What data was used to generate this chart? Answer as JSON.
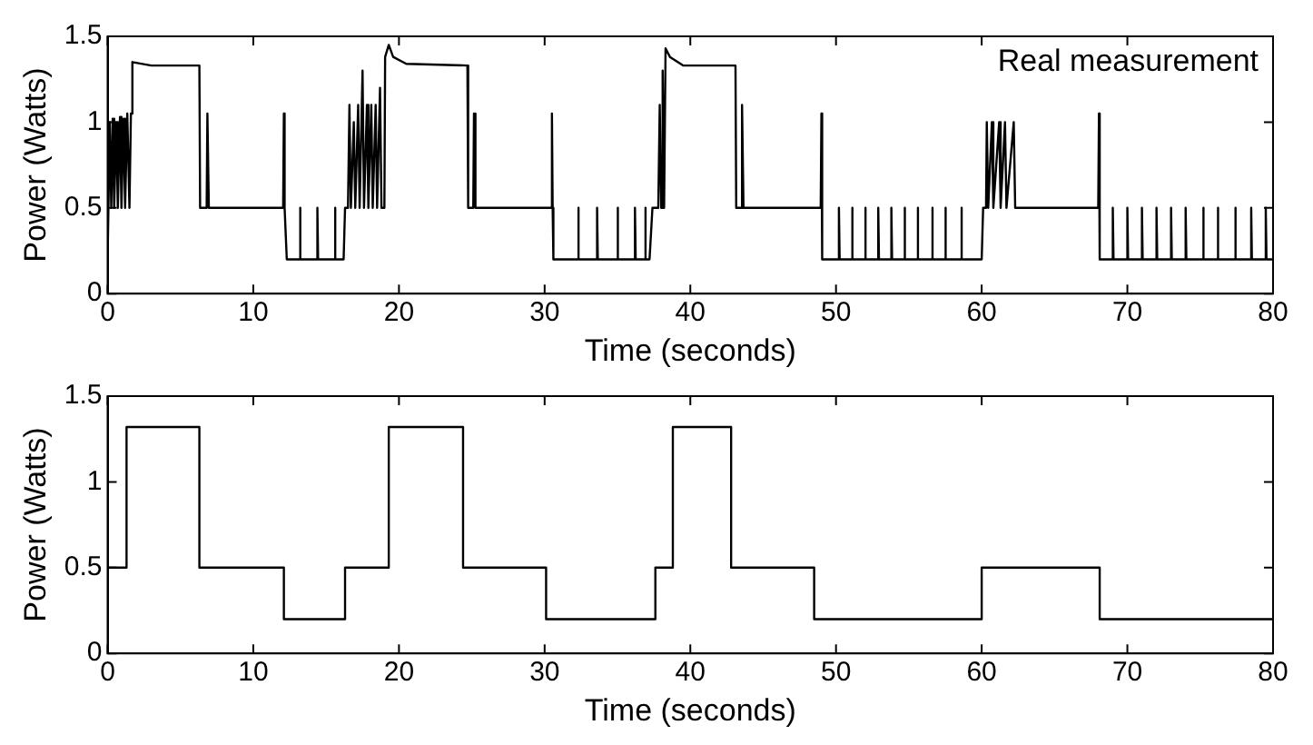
{
  "chart_data": [
    {
      "type": "line",
      "xlabel": "Time (seconds)",
      "ylabel": "Power (Watts)",
      "xlim": [
        0,
        80
      ],
      "ylim": [
        0,
        1.5
      ],
      "xticks": [
        0,
        10,
        20,
        30,
        40,
        50,
        60,
        70,
        80
      ],
      "yticks": [
        0,
        0.5,
        1,
        1.5
      ],
      "line_style": "solid",
      "marker": "none",
      "series": [
        {
          "name": "Real measurement",
          "color": "#000000",
          "x": [
            0,
            0.15,
            0.25,
            0.35,
            0.45,
            0.6,
            0.7,
            0.85,
            0.95,
            1.1,
            1.2,
            1.35,
            1.5,
            1.6,
            1.7,
            3,
            6.3,
            6.35,
            6.8,
            6.85,
            6.95,
            12.05,
            12.1,
            12.15,
            12.3,
            13.2,
            13.2,
            13.25,
            14.4,
            14.4,
            14.45,
            15.6,
            15.6,
            15.65,
            16.2,
            16.3,
            16.5,
            16.6,
            16.7,
            16.9,
            17,
            17.2,
            17.3,
            17.5,
            17.6,
            17.8,
            17.9,
            18.1,
            18.2,
            18.4,
            18.5,
            18.7,
            18.8,
            19,
            19.05,
            19.3,
            19.6,
            20.5,
            24.7,
            24.75,
            25.1,
            25.15,
            25.25,
            30.45,
            30.5,
            30.55,
            30.6,
            32.3,
            32.3,
            32.35,
            33.6,
            33.6,
            33.65,
            35,
            35,
            35.05,
            36.2,
            36.2,
            36.25,
            36.9,
            36.9,
            36.95,
            37.2,
            37.4,
            37.8,
            37.9,
            38,
            38.1,
            38.2,
            38.3,
            38.6,
            39.5,
            43.1,
            43.15,
            43.5,
            43.55,
            43.65,
            48.95,
            49,
            49.05,
            50.2,
            50.2,
            50.25,
            51.1,
            51.1,
            51.15,
            52,
            52,
            52.05,
            52.9,
            52.9,
            52.95,
            53.8,
            53.8,
            53.85,
            54.7,
            54.7,
            54.75,
            55.6,
            55.6,
            55.65,
            56.6,
            56.6,
            56.65,
            57.5,
            57.5,
            57.55,
            58.6,
            58.6,
            58.65,
            60,
            60.1,
            60.3,
            60.35,
            60.45,
            60.7,
            60.8,
            61.2,
            61.3,
            61.6,
            61.7,
            62.2,
            62.3,
            68,
            68.05,
            68.1,
            69,
            69,
            69.05,
            70,
            70,
            70.05,
            71,
            71,
            71.05,
            72,
            72,
            72.05,
            73,
            73,
            73.05,
            74,
            74,
            74.05,
            75.2,
            75.2,
            75.25,
            76.2,
            76.2,
            76.25,
            77.4,
            77.4,
            77.45,
            78.5,
            78.5,
            78.55,
            79.5,
            79.5,
            79.55,
            80
          ],
          "values": [
            0.2,
            1.0,
            0.5,
            1.02,
            0.5,
            1.0,
            0.5,
            1.03,
            0.5,
            1.02,
            0.5,
            1.05,
            0.5,
            1.05,
            1.35,
            1.33,
            1.33,
            0.5,
            0.5,
            1.05,
            0.5,
            0.5,
            1.05,
            0.5,
            0.2,
            0.2,
            0.5,
            0.2,
            0.2,
            0.5,
            0.2,
            0.2,
            0.5,
            0.2,
            0.2,
            0.5,
            0.5,
            1.1,
            0.5,
            1.0,
            0.5,
            1.1,
            0.5,
            1.3,
            0.5,
            1.1,
            0.5,
            1.1,
            0.5,
            1.1,
            0.5,
            1.2,
            0.5,
            0.5,
            1.38,
            1.45,
            1.38,
            1.34,
            1.33,
            0.5,
            0.5,
            1.05,
            0.5,
            0.5,
            1.05,
            0.5,
            0.2,
            0.2,
            0.5,
            0.2,
            0.2,
            0.5,
            0.2,
            0.2,
            0.5,
            0.2,
            0.2,
            0.5,
            0.2,
            0.2,
            0.5,
            0.2,
            0.2,
            0.5,
            0.5,
            1.1,
            0.5,
            1.3,
            0.5,
            1.43,
            1.38,
            1.33,
            1.33,
            0.5,
            0.5,
            1.1,
            0.5,
            0.5,
            1.05,
            0.2,
            0.2,
            0.5,
            0.2,
            0.2,
            0.5,
            0.2,
            0.2,
            0.5,
            0.2,
            0.2,
            0.5,
            0.2,
            0.2,
            0.5,
            0.2,
            0.2,
            0.5,
            0.2,
            0.2,
            0.5,
            0.2,
            0.2,
            0.5,
            0.2,
            0.2,
            0.5,
            0.2,
            0.2,
            0.5,
            0.2,
            0.2,
            0.5,
            0.5,
            1.0,
            0.5,
            1.0,
            0.5,
            1.0,
            0.5,
            1.0,
            0.5,
            1.0,
            0.5,
            0.5,
            1.05,
            0.2,
            0.2,
            0.5,
            0.2,
            0.2,
            0.5,
            0.2,
            0.2,
            0.5,
            0.2,
            0.2,
            0.5,
            0.2,
            0.2,
            0.5,
            0.2,
            0.2,
            0.5,
            0.2,
            0.2,
            0.5,
            0.2,
            0.2,
            0.5,
            0.2,
            0.2,
            0.5,
            0.2,
            0.2,
            0.5,
            0.2,
            0.2,
            0.5,
            0.2,
            0.2
          ]
        }
      ]
    },
    {
      "type": "step",
      "xlabel": "Time (seconds)",
      "ylabel": "Power (Watts)",
      "xlim": [
        0,
        80
      ],
      "ylim": [
        0,
        1.5
      ],
      "xticks": [
        0,
        10,
        20,
        30,
        40,
        50,
        60,
        70,
        80
      ],
      "yticks": [
        0,
        0.5,
        1,
        1.5
      ],
      "line_style": "solid",
      "marker": "none",
      "series": [
        {
          "color": "#000000",
          "x": [
            0,
            1.3,
            6.3,
            12.1,
            16.3,
            19.3,
            24.4,
            30.1,
            37.6,
            38.8,
            42.8,
            48.5,
            60,
            68.1,
            80
          ],
          "values": [
            0.5,
            1.32,
            0.5,
            0.2,
            0.5,
            1.32,
            0.5,
            0.2,
            0.5,
            1.32,
            0.5,
            0.2,
            0.5,
            0.2,
            0.2
          ]
        }
      ]
    }
  ]
}
